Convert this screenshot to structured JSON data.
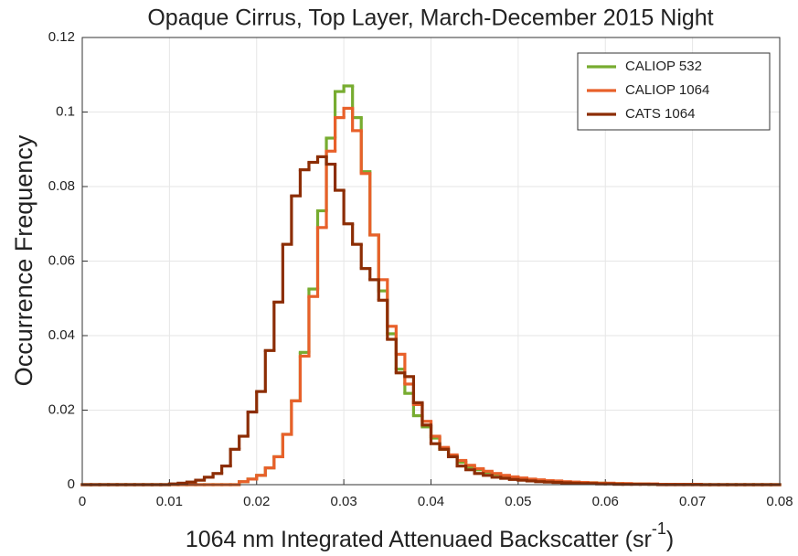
{
  "chart_data": {
    "type": "histogram",
    "title": "Opaque Cirrus, Top Layer, March-December 2015 Night",
    "xlabel": {
      "text": "1064 nm Integrated Attenuaed Backscatter (sr",
      "superscript": "-1",
      "suffix": ")"
    },
    "ylabel": "Occurrence Frequency",
    "bins": [
      0,
      0.001,
      0.002,
      0.003,
      0.004,
      0.005,
      0.006,
      0.007,
      0.008,
      0.009,
      0.01,
      0.011,
      0.012,
      0.013,
      0.014,
      0.015,
      0.016,
      0.017,
      0.018,
      0.019,
      0.02,
      0.021,
      0.022,
      0.023,
      0.024,
      0.025,
      0.026,
      0.027,
      0.028,
      0.029,
      0.03,
      0.031,
      0.032,
      0.033,
      0.034,
      0.035,
      0.036,
      0.037,
      0.038,
      0.039,
      0.04,
      0.041,
      0.042,
      0.043,
      0.044,
      0.045,
      0.046,
      0.047,
      0.048,
      0.049,
      0.05,
      0.051,
      0.052,
      0.053,
      0.054,
      0.055,
      0.056,
      0.057,
      0.058,
      0.059,
      0.06,
      0.061,
      0.062,
      0.063,
      0.064,
      0.065,
      0.066,
      0.067,
      0.068,
      0.069,
      0.07,
      0.071,
      0.072,
      0.073,
      0.074,
      0.075,
      0.076,
      0.077,
      0.078,
      0.079,
      0.08
    ],
    "series": [
      {
        "name": "CALIOP 532",
        "color": "#77ac30",
        "values": [
          0,
          0,
          0,
          0,
          0,
          0,
          0,
          0,
          0,
          0,
          0,
          0,
          0,
          0,
          0,
          0,
          0,
          0,
          0.0008,
          0.0015,
          0.0025,
          0.0045,
          0.0075,
          0.0135,
          0.0225,
          0.0355,
          0.0525,
          0.0735,
          0.093,
          0.1055,
          0.107,
          0.0985,
          0.084,
          0.067,
          0.052,
          0.0405,
          0.031,
          0.0245,
          0.0185,
          0.0155,
          0.0125,
          0.0095,
          0.0075,
          0.006,
          0.0048,
          0.004,
          0.0033,
          0.0028,
          0.0023,
          0.002,
          0.0016,
          0.0014,
          0.0012,
          0.001,
          0.0009,
          0.0007,
          0.0006,
          0.0005,
          0.0005,
          0.0004,
          0.0003,
          0.0003,
          0.0002,
          0.0002,
          0.0002,
          0.0001,
          0.0001,
          0.0001,
          0.0001,
          0.0001,
          0.0001,
          0,
          0,
          0,
          0,
          0,
          0,
          0,
          0,
          0
        ]
      },
      {
        "name": "CALIOP 1064",
        "color": "#e8602a",
        "values": [
          0,
          0,
          0,
          0,
          0,
          0,
          0,
          0,
          0,
          0,
          0,
          0,
          0,
          0,
          0,
          0,
          0,
          0,
          0.0008,
          0.0015,
          0.0025,
          0.0045,
          0.0075,
          0.0135,
          0.0225,
          0.0345,
          0.0505,
          0.069,
          0.0895,
          0.0985,
          0.101,
          0.095,
          0.0835,
          0.067,
          0.055,
          0.0425,
          0.035,
          0.027,
          0.0215,
          0.017,
          0.013,
          0.01,
          0.008,
          0.0065,
          0.0052,
          0.0043,
          0.0036,
          0.003,
          0.0025,
          0.0021,
          0.0018,
          0.0015,
          0.0013,
          0.0011,
          0.001,
          0.0008,
          0.0007,
          0.0006,
          0.0005,
          0.0004,
          0.0004,
          0.0003,
          0.0003,
          0.0002,
          0.0002,
          0.0002,
          0.0001,
          0.0001,
          0.0001,
          0.0001,
          0.0001,
          0,
          0,
          0,
          0,
          0,
          0,
          0,
          0,
          0
        ]
      },
      {
        "name": "CATS 1064",
        "color": "#8c2d04",
        "values": [
          0,
          0,
          0,
          0,
          0,
          0,
          0,
          0,
          0,
          0,
          0.0002,
          0.0004,
          0.0007,
          0.0012,
          0.002,
          0.003,
          0.005,
          0.0095,
          0.013,
          0.0195,
          0.025,
          0.036,
          0.049,
          0.0645,
          0.0775,
          0.0845,
          0.0865,
          0.088,
          0.086,
          0.079,
          0.07,
          0.0645,
          0.058,
          0.055,
          0.0495,
          0.039,
          0.03,
          0.029,
          0.022,
          0.016,
          0.011,
          0.0095,
          0.0075,
          0.005,
          0.004,
          0.003,
          0.0025,
          0.002,
          0.0017,
          0.0014,
          0.0012,
          0.001,
          0.0008,
          0.0007,
          0.0006,
          0.0005,
          0.0004,
          0.0003,
          0.0003,
          0.0002,
          0.0002,
          0.0001,
          0.0001,
          0.0001,
          0.0001,
          0.0001,
          0,
          0,
          0,
          0,
          0,
          0,
          0,
          0,
          0,
          0,
          0,
          0,
          0,
          0
        ]
      }
    ],
    "xlim": [
      0,
      0.08
    ],
    "xticks": [
      0,
      0.01,
      0.02,
      0.03,
      0.04,
      0.05,
      0.06,
      0.07,
      0.08
    ],
    "ylim": [
      0,
      0.12
    ],
    "yticks": [
      0,
      0.02,
      0.04,
      0.06,
      0.08,
      0.1,
      0.12
    ],
    "grid": true,
    "legend": "upper right"
  }
}
